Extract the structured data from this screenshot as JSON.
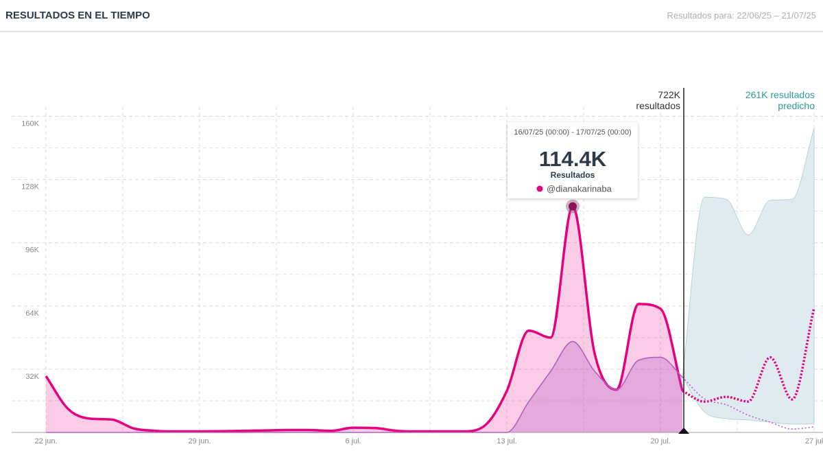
{
  "chart_data": {
    "type": "line",
    "title": "RESULTADOS EN EL TIEMPO",
    "subtitle": "Resultados para: 22/06/25 – 21/07/25",
    "categories": [
      "22 jun.",
      null,
      null,
      null,
      null,
      null,
      null,
      "29 jun.",
      null,
      null,
      null,
      null,
      null,
      null,
      "6 jul.",
      null,
      null,
      null,
      null,
      null,
      null,
      "13 jul.",
      null,
      null,
      null,
      null,
      null,
      null,
      "20 jul.",
      null,
      null,
      null,
      null,
      null,
      null,
      "27 jul"
    ],
    "series": [
      {
        "name": "@dianakarinaba",
        "color": "#e6007e",
        "style": "solid",
        "values": [
          28500,
          12000,
          7000,
          6500,
          2000,
          800,
          500,
          500,
          600,
          800,
          1000,
          1200,
          1200,
          800,
          2400,
          2200,
          800,
          500,
          500,
          500,
          3500,
          21000,
          51500,
          48000,
          114400,
          40000,
          21600,
          65000,
          62600,
          21000,
          null,
          null,
          null,
          null,
          null,
          null
        ],
        "value_labels": [
          null,
          null,
          null,
          null,
          null,
          null,
          null,
          null,
          null,
          null,
          null,
          null,
          null,
          null,
          null,
          null,
          null,
          null,
          null,
          null,
          null,
          null,
          null,
          null,
          "114.4K",
          null,
          null,
          null,
          null,
          null,
          null,
          null,
          null,
          null,
          null,
          null
        ]
      },
      {
        "color": "#b35ec6",
        "style": "solid",
        "values": [
          0,
          0,
          0,
          0,
          0,
          0,
          0,
          0,
          0,
          0,
          0,
          0,
          0,
          0,
          0,
          0,
          0,
          0,
          0,
          0,
          0,
          0,
          15600,
          31000,
          46000,
          31000,
          21600,
          36500,
          38000,
          28000,
          null,
          null,
          null,
          null,
          null,
          null
        ]
      },
      {
        "color": "#e6007e",
        "style": "dotted",
        "values": [
          null,
          null,
          null,
          null,
          null,
          null,
          null,
          null,
          null,
          null,
          null,
          null,
          null,
          null,
          null,
          null,
          null,
          null,
          null,
          null,
          null,
          null,
          null,
          null,
          null,
          null,
          null,
          null,
          null,
          21000,
          15600,
          18000,
          15600,
          38000,
          16700,
          63000
        ]
      },
      {
        "color": "#b35ec6",
        "style": "dotted",
        "values": [
          null,
          null,
          null,
          null,
          null,
          null,
          null,
          null,
          null,
          null,
          null,
          null,
          null,
          null,
          null,
          null,
          null,
          null,
          null,
          null,
          null,
          null,
          null,
          null,
          null,
          null,
          null,
          null,
          null,
          28000,
          17000,
          14000,
          8700,
          5200,
          1700,
          2800
        ]
      }
    ],
    "band": {
      "color": "#dbe9ec",
      "low": [
        null,
        null,
        null,
        null,
        null,
        null,
        null,
        null,
        null,
        null,
        null,
        null,
        null,
        null,
        null,
        null,
        null,
        null,
        null,
        null,
        null,
        null,
        null,
        null,
        null,
        null,
        null,
        null,
        null,
        28000,
        10400,
        7000,
        6300,
        5200,
        4200,
        4200
      ],
      "high": [
        null,
        null,
        null,
        null,
        null,
        null,
        null,
        null,
        null,
        null,
        null,
        null,
        null,
        null,
        null,
        null,
        null,
        null,
        null,
        null,
        null,
        null,
        null,
        null,
        null,
        null,
        null,
        null,
        null,
        28000,
        119000,
        118000,
        100000,
        117500,
        118000,
        154000
      ]
    },
    "ylim": [
      0,
      165000
    ],
    "yticks": [
      {
        "value": 32000,
        "label": "32K"
      },
      {
        "value": 64000,
        "label": "64K"
      },
      {
        "value": 96000,
        "label": "96K"
      },
      {
        "value": 128000,
        "label": "128K"
      },
      {
        "value": 160000,
        "label": "160K"
      }
    ],
    "yminorticks": [
      16000,
      48000,
      80000,
      112000,
      144000
    ],
    "grid": true,
    "annotations": [
      {
        "lines": [
          "722K",
          "resultados"
        ],
        "color": "#333333"
      },
      {
        "lines": [
          "261K resultados",
          "predicho"
        ],
        "color": "#2a9d96"
      }
    ],
    "tooltip": {
      "period": "16/07/25 (00:00) - 17/07/25 (00:00)",
      "label": "Resultados"
    }
  }
}
